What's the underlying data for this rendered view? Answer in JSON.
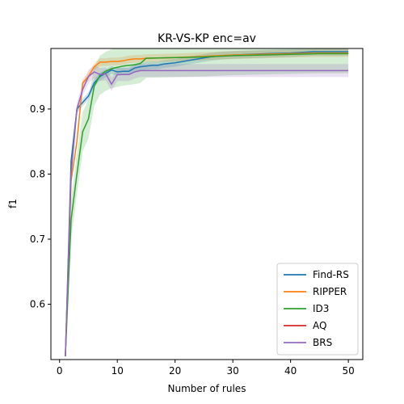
{
  "chart_data": {
    "type": "line",
    "title": "KR-VS-KP enc=av",
    "xlabel": "Number of rules",
    "ylabel": "f1",
    "xlim": [
      -1.5,
      52.5
    ],
    "ylim": [
      0.515,
      0.993
    ],
    "xticks": [
      0,
      10,
      20,
      30,
      40,
      50
    ],
    "yticks": [
      0.6,
      0.7,
      0.8,
      0.9
    ],
    "legend_position": "lower-right",
    "grid": false,
    "series": [
      {
        "name": "Find-RS",
        "color": "#1f77b4",
        "x": [
          1,
          2,
          3,
          4,
          5,
          6,
          7,
          8,
          9,
          10,
          11,
          12,
          13,
          14,
          15,
          16,
          17,
          18,
          19,
          20,
          22,
          24,
          26,
          28,
          30,
          33,
          36,
          40,
          44,
          48,
          50
        ],
        "y": [
          0.52,
          0.82,
          0.9,
          0.91,
          0.92,
          0.94,
          0.95,
          0.955,
          0.96,
          0.957,
          0.958,
          0.958,
          0.963,
          0.965,
          0.966,
          0.967,
          0.967,
          0.969,
          0.97,
          0.971,
          0.974,
          0.977,
          0.98,
          0.982,
          0.983,
          0.984,
          0.985,
          0.986,
          0.988,
          0.988,
          0.988
        ],
        "band": 0.006
      },
      {
        "name": "RIPPER",
        "color": "#ff7f0e",
        "x": [
          1,
          2,
          3,
          4,
          5,
          6,
          7,
          8,
          9,
          10,
          11,
          12,
          13,
          14,
          15,
          20,
          25,
          30,
          35,
          40,
          45,
          50
        ],
        "y": [
          0.52,
          0.79,
          0.85,
          0.94,
          0.95,
          0.965,
          0.972,
          0.972,
          0.973,
          0.973,
          0.974,
          0.976,
          0.977,
          0.977,
          0.978,
          0.979,
          0.981,
          0.983,
          0.984,
          0.985,
          0.986,
          0.986
        ],
        "band": 0.006
      },
      {
        "name": "ID3",
        "color": "#2ca02c",
        "x": [
          1,
          2,
          3,
          4,
          5,
          6,
          7,
          8,
          9,
          10,
          11,
          12,
          13,
          14,
          15,
          20,
          25,
          30,
          35,
          40,
          45,
          50
        ],
        "y": [
          0.52,
          0.73,
          0.8,
          0.865,
          0.885,
          0.935,
          0.952,
          0.958,
          0.962,
          0.964,
          0.966,
          0.967,
          0.968,
          0.97,
          0.978,
          0.979,
          0.98,
          0.982,
          0.983,
          0.984,
          0.985,
          0.985
        ],
        "band": 0.03
      },
      {
        "name": "AQ",
        "color": "#d62728",
        "x": [],
        "y": [],
        "band": 0
      },
      {
        "name": "BRS",
        "color": "#9467bd",
        "x": [
          1,
          2,
          3,
          4,
          5,
          6,
          7,
          8,
          9,
          10,
          11,
          12,
          13,
          14,
          15,
          20,
          25,
          30,
          35,
          40,
          45,
          50
        ],
        "y": [
          0.52,
          0.8,
          0.9,
          0.93,
          0.95,
          0.957,
          0.953,
          0.954,
          0.938,
          0.953,
          0.953,
          0.953,
          0.957,
          0.959,
          0.959,
          0.959,
          0.959,
          0.959,
          0.959,
          0.959,
          0.959,
          0.959
        ],
        "band": 0.01
      }
    ]
  }
}
